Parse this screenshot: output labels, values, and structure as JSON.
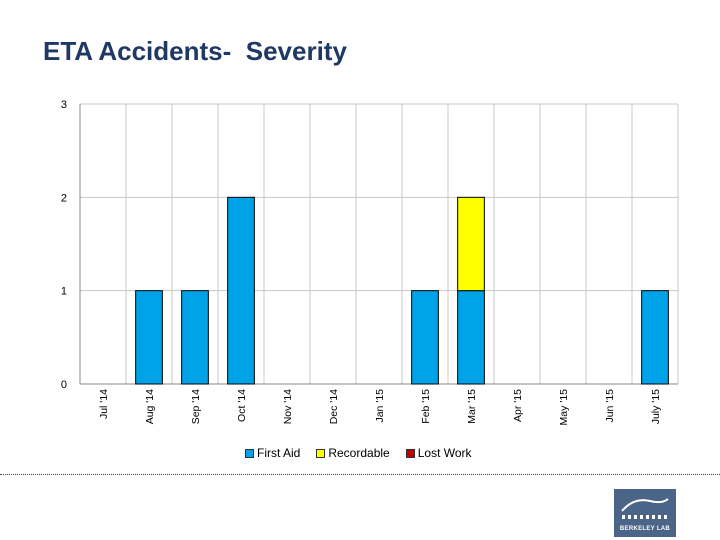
{
  "title": "ETA Accidents-  Severity",
  "chart_data": {
    "type": "bar",
    "stacked": true,
    "categories": [
      "Jul '14",
      "Aug '14",
      "Sep '14",
      "Oct '14",
      "Nov '14",
      "Dec '14",
      "Jan '15",
      "Feb '15",
      "Mar '15",
      "Apr '15",
      "May '15",
      "Jun '15",
      "July '15"
    ],
    "series": [
      {
        "name": "First Aid",
        "color": "#00a2e8",
        "values": [
          0,
          1,
          1,
          2,
          0,
          0,
          0,
          1,
          1,
          0,
          0,
          0,
          1
        ]
      },
      {
        "name": "Recordable",
        "color": "#ffff00",
        "values": [
          0,
          0,
          0,
          0,
          0,
          0,
          0,
          0,
          1,
          0,
          0,
          0,
          0
        ]
      },
      {
        "name": "Lost Work",
        "color": "#c00000",
        "values": [
          0,
          0,
          0,
          0,
          0,
          0,
          0,
          0,
          0,
          0,
          0,
          0,
          0
        ]
      }
    ],
    "ylim": [
      0,
      3
    ],
    "yticks": [
      0,
      1,
      2,
      3
    ],
    "xlabel": "",
    "ylabel": "",
    "grid": true,
    "legend": "bottom"
  },
  "logo": {
    "text": "BERKELEY LAB"
  }
}
